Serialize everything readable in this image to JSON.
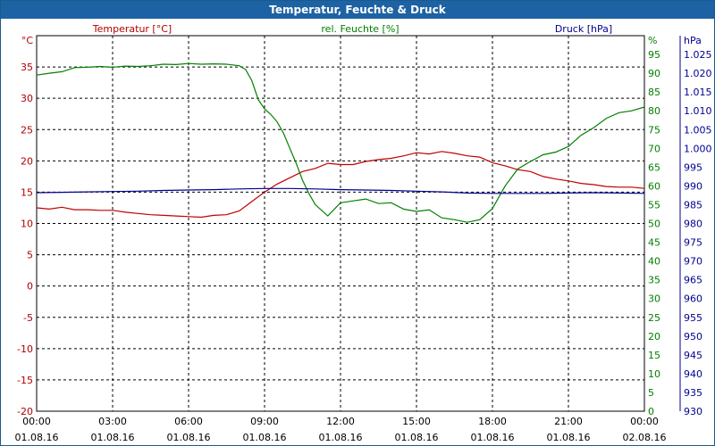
{
  "title": "Temperatur, Feuchte & Druck",
  "chart_data": {
    "type": "line",
    "title": "Temperatur, Feuchte & Druck",
    "x_ticks": [
      {
        "time": "00:00",
        "date": "01.08.16",
        "h": 0
      },
      {
        "time": "03:00",
        "date": "01.08.16",
        "h": 3
      },
      {
        "time": "06:00",
        "date": "01.08.16",
        "h": 6
      },
      {
        "time": "09:00",
        "date": "01.08.16",
        "h": 9
      },
      {
        "time": "12:00",
        "date": "01.08.16",
        "h": 12
      },
      {
        "time": "15:00",
        "date": "01.08.16",
        "h": 15
      },
      {
        "time": "18:00",
        "date": "01.08.16",
        "h": 18
      },
      {
        "time": "21:00",
        "date": "01.08.16",
        "h": 21
      },
      {
        "time": "00:00",
        "date": "02.08.16",
        "h": 24
      }
    ],
    "axes": {
      "temperature": {
        "label": "Temperatur [°C]",
        "unit": "°C",
        "range": [
          -20,
          40
        ],
        "ticks": [
          -20,
          -15,
          -10,
          -5,
          0,
          5,
          10,
          15,
          20,
          25,
          30,
          35
        ],
        "color": "#b00000"
      },
      "humidity": {
        "label": "rel. Feuchte [%]",
        "unit": "%",
        "range": [
          0,
          100
        ],
        "ticks": [
          0,
          5,
          10,
          15,
          20,
          25,
          30,
          35,
          40,
          45,
          50,
          55,
          60,
          65,
          70,
          75,
          80,
          85,
          90,
          95
        ],
        "color": "#008000"
      },
      "pressure": {
        "label": "Druck [hPa]",
        "unit": "hPa",
        "range": [
          930,
          1030
        ],
        "ticks": [
          930,
          935,
          940,
          945,
          950,
          955,
          960,
          965,
          970,
          975,
          980,
          985,
          990,
          995,
          1000,
          1005,
          1010,
          1015,
          1020,
          1025
        ],
        "color": "#000090"
      }
    },
    "grid": true,
    "series": [
      {
        "name": "Temperatur [°C]",
        "axis": "temperature",
        "color": "#c00000",
        "x": [
          0,
          0.5,
          1,
          1.5,
          2,
          2.5,
          3,
          3.5,
          4,
          4.5,
          5,
          5.5,
          6,
          6.5,
          7,
          7.5,
          8,
          8.5,
          9,
          9.5,
          10,
          10.5,
          11,
          11.5,
          12,
          12.5,
          13,
          13.5,
          14,
          14.5,
          15,
          15.5,
          16,
          16.5,
          17,
          17.5,
          18,
          18.5,
          19,
          19.5,
          20,
          20.5,
          21,
          21.5,
          22,
          22.5,
          23,
          23.5,
          24
        ],
        "y": [
          12.5,
          12.3,
          12.6,
          12.2,
          12.2,
          12.1,
          12.1,
          11.8,
          11.6,
          11.4,
          11.3,
          11.2,
          11.1,
          11.0,
          11.3,
          11.4,
          12.0,
          13.5,
          15.0,
          16.3,
          17.3,
          18.3,
          18.8,
          19.6,
          19.4,
          19.4,
          19.9,
          20.2,
          20.4,
          20.8,
          21.3,
          21.1,
          21.5,
          21.2,
          20.8,
          20.6,
          19.7,
          19.2,
          18.6,
          18.3,
          17.5,
          17.1,
          16.8,
          16.4,
          16.2,
          15.9,
          15.8,
          15.8,
          15.6
        ]
      },
      {
        "name": "rel. Feuchte [%]",
        "axis": "humidity",
        "color": "#008000",
        "x": [
          0,
          0.5,
          1,
          1.5,
          2,
          2.5,
          3,
          3.5,
          4,
          4.5,
          5,
          5.5,
          6,
          6.5,
          7,
          7.5,
          8,
          8.25,
          8.5,
          8.75,
          9,
          9.25,
          9.5,
          9.75,
          10,
          10.25,
          10.5,
          10.75,
          11,
          11.5,
          12,
          12.5,
          13,
          13.5,
          14,
          14.5,
          15,
          15.5,
          16,
          16.5,
          17,
          17.5,
          18,
          18.5,
          19,
          19.5,
          20,
          20.5,
          21,
          21.5,
          22,
          22.5,
          23,
          23.5,
          24
        ],
        "y": [
          89.5,
          90.0,
          90.4,
          91.5,
          91.6,
          91.8,
          91.6,
          91.9,
          91.8,
          92.0,
          92.4,
          92.3,
          92.6,
          92.4,
          92.5,
          92.4,
          92.0,
          91.0,
          88.0,
          83.0,
          80.5,
          79.0,
          77.0,
          74.0,
          70.0,
          66.0,
          61.5,
          58.0,
          55.0,
          52.0,
          55.5,
          56.0,
          56.5,
          55.3,
          55.5,
          53.8,
          53.2,
          53.6,
          51.5,
          51.0,
          50.3,
          51.0,
          54.0,
          60.0,
          64.5,
          66.5,
          68.3,
          69.0,
          70.5,
          73.5,
          75.5,
          78.0,
          79.5,
          80.0,
          81.0
        ]
      },
      {
        "name": "Druck [hPa]",
        "axis": "pressure",
        "color": "#000090",
        "x": [
          0,
          1,
          2,
          3,
          4,
          5,
          6,
          7,
          8,
          9,
          10,
          11,
          12,
          13,
          14,
          15,
          16,
          17,
          18,
          19,
          20,
          21,
          22,
          23,
          24
        ],
        "y": [
          988.2,
          988.3,
          988.4,
          988.5,
          988.6,
          988.8,
          988.9,
          989.0,
          989.2,
          989.3,
          989.3,
          989.2,
          989.0,
          988.9,
          988.8,
          988.6,
          988.4,
          988.1,
          988.0,
          988.0,
          988.0,
          988.1,
          988.2,
          988.1,
          988.0
        ]
      }
    ]
  }
}
